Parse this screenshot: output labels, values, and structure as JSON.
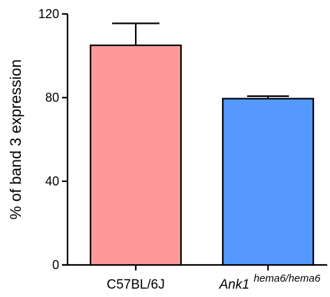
{
  "chart_data": {
    "type": "bar",
    "title": "",
    "ylabel": "% of band 3 expression",
    "xlabel": "",
    "ylim": [
      0,
      120
    ],
    "yticks": [
      0,
      40,
      80,
      120
    ],
    "categories": [
      {
        "main": "C57BL/6J",
        "sup": "",
        "italic": false,
        "color": "#ff9999"
      },
      {
        "main": "Ank1",
        "sup": "hema6/hema6",
        "italic": true,
        "color": "#5599ff"
      }
    ],
    "values": [
      105,
      79.5
    ],
    "errors": [
      10.5,
      1.2
    ],
    "grid": false,
    "legend": "none"
  }
}
